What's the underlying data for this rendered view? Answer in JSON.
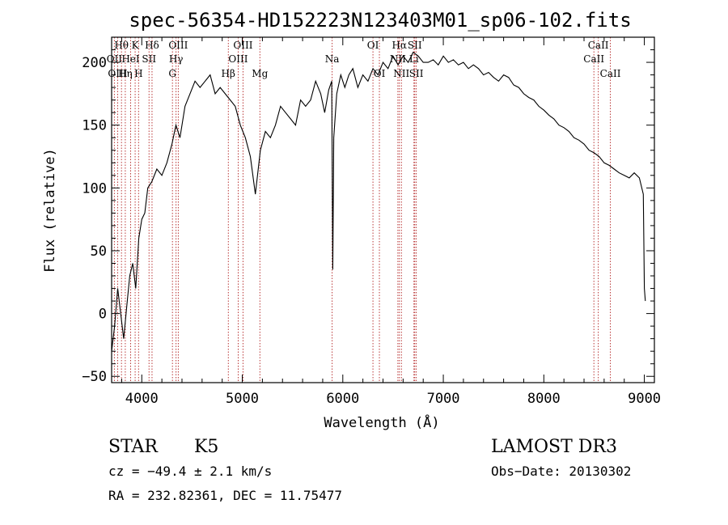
{
  "chart_data": {
    "type": "line",
    "title": "spec-56354-HD152223N123403M01_sp06-102.fits",
    "xlabel": "Wavelength (Å)",
    "ylabel": "Flux (relative)",
    "xlim": [
      3700,
      9100
    ],
    "ylim": [
      -55,
      220
    ],
    "x_ticks": [
      4000,
      5000,
      6000,
      7000,
      8000,
      9000
    ],
    "y_ticks": [
      -50,
      0,
      50,
      100,
      150,
      200
    ],
    "series": [
      {
        "name": "flux",
        "x": [
          3700,
          3730,
          3760,
          3790,
          3820,
          3850,
          3880,
          3910,
          3940,
          3970,
          4000,
          4030,
          4060,
          4100,
          4150,
          4200,
          4250,
          4300,
          4340,
          4380,
          4430,
          4480,
          4530,
          4580,
          4630,
          4680,
          4730,
          4780,
          4830,
          4880,
          4930,
          4980,
          5030,
          5080,
          5130,
          5180,
          5230,
          5280,
          5330,
          5380,
          5430,
          5480,
          5530,
          5580,
          5630,
          5680,
          5730,
          5780,
          5820,
          5860,
          5890,
          5900,
          5910,
          5940,
          5980,
          6020,
          6060,
          6100,
          6150,
          6200,
          6250,
          6300,
          6350,
          6400,
          6450,
          6500,
          6550,
          6600,
          6650,
          6700,
          6750,
          6800,
          6850,
          6900,
          6950,
          7000,
          7050,
          7100,
          7150,
          7200,
          7250,
          7300,
          7350,
          7400,
          7450,
          7500,
          7550,
          7600,
          7650,
          7700,
          7750,
          7800,
          7850,
          7900,
          7950,
          8000,
          8050,
          8100,
          8150,
          8200,
          8250,
          8300,
          8350,
          8400,
          8450,
          8500,
          8550,
          8600,
          8650,
          8700,
          8750,
          8800,
          8850,
          8900,
          8950,
          8990,
          9000,
          9010
        ],
        "values": [
          -30,
          -10,
          20,
          0,
          -20,
          5,
          30,
          40,
          20,
          60,
          75,
          80,
          100,
          105,
          115,
          110,
          120,
          135,
          150,
          140,
          165,
          175,
          185,
          180,
          185,
          190,
          175,
          180,
          175,
          170,
          165,
          150,
          140,
          125,
          95,
          130,
          145,
          140,
          150,
          165,
          160,
          155,
          150,
          170,
          165,
          170,
          185,
          175,
          160,
          178,
          185,
          35,
          140,
          175,
          190,
          180,
          190,
          195,
          180,
          190,
          185,
          195,
          190,
          200,
          195,
          205,
          198,
          205,
          200,
          208,
          205,
          200,
          200,
          202,
          198,
          205,
          200,
          202,
          198,
          200,
          195,
          198,
          195,
          190,
          192,
          188,
          185,
          190,
          188,
          182,
          180,
          175,
          172,
          170,
          165,
          162,
          158,
          155,
          150,
          148,
          145,
          140,
          138,
          135,
          130,
          128,
          125,
          120,
          118,
          115,
          112,
          110,
          108,
          112,
          108,
          95,
          20,
          10
        ]
      }
    ],
    "spectral_lines": [
      {
        "name": "Hθ",
        "wavelength": 3798,
        "row": 0
      },
      {
        "name": "OII",
        "wavelength": 3727,
        "row": 1
      },
      {
        "name": "OIII",
        "wavelength": 3760,
        "row": 2
      },
      {
        "name": "Hη",
        "wavelength": 3836,
        "row": 2
      },
      {
        "name": "HeI",
        "wavelength": 3889,
        "row": 1
      },
      {
        "name": "K",
        "wavelength": 3934,
        "row": 0
      },
      {
        "name": "H",
        "wavelength": 3968,
        "row": 2
      },
      {
        "name": "SII",
        "wavelength": 4072,
        "row": 1
      },
      {
        "name": "Hδ",
        "wavelength": 4102,
        "row": 0
      },
      {
        "name": "G",
        "wavelength": 4305,
        "row": 2
      },
      {
        "name": "OIII",
        "wavelength": 4363,
        "row": 0
      },
      {
        "name": "Hγ",
        "wavelength": 4341,
        "row": 1
      },
      {
        "name": "Hβ",
        "wavelength": 4861,
        "row": 2
      },
      {
        "name": "OIII",
        "wavelength": 4959,
        "row": 1
      },
      {
        "name": "OIII",
        "wavelength": 5007,
        "row": 0
      },
      {
        "name": "Mg",
        "wavelength": 5175,
        "row": 2
      },
      {
        "name": "Na",
        "wavelength": 5894,
        "row": 1
      },
      {
        "name": "OI",
        "wavelength": 6300,
        "row": 0
      },
      {
        "name": "OI",
        "wavelength": 6364,
        "row": 2
      },
      {
        "name": "Hα",
        "wavelength": 6563,
        "row": 0
      },
      {
        "name": "NII",
        "wavelength": 6548,
        "row": 1
      },
      {
        "name": "NII",
        "wavelength": 6583,
        "row": 2
      },
      {
        "name": "SII",
        "wavelength": 6716,
        "row": 0
      },
      {
        "name": "SII",
        "wavelength": 6731,
        "row": 2
      },
      {
        "name": "Li",
        "wavelength": 6708,
        "row": 1
      },
      {
        "name": "CaII",
        "wavelength": 8498,
        "row": 1
      },
      {
        "name": "CaII",
        "wavelength": 8542,
        "row": 0
      },
      {
        "name": "CaII",
        "wavelength": 8662,
        "row": 2
      }
    ]
  },
  "info": {
    "class": "STAR",
    "subclass": "K5",
    "survey": "LAMOST DR3",
    "cz": "cz = −49.4 ± 2.1 km/s",
    "obs_date": "Obs−Date: 20130302",
    "radec": "RA = 232.82361, DEC =  11.75477"
  }
}
